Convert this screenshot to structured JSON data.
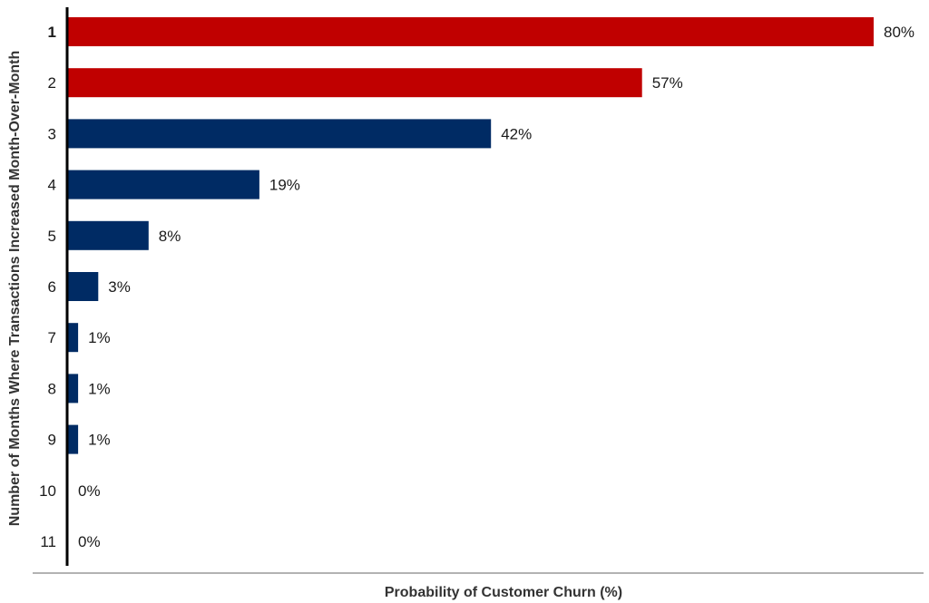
{
  "chart_data": {
    "type": "bar",
    "orientation": "horizontal",
    "categories": [
      "1",
      "2",
      "3",
      "4",
      "5",
      "6",
      "7",
      "8",
      "9",
      "10",
      "11"
    ],
    "values": [
      80,
      57,
      42,
      19,
      8,
      3,
      1,
      1,
      1,
      0,
      0
    ],
    "data_labels": [
      "80%",
      "57%",
      "42%",
      "19%",
      "8%",
      "3%",
      "1%",
      "1%",
      "1%",
      "0%",
      "0%"
    ],
    "bar_colors": [
      "#c00000",
      "#c00000",
      "#002b64",
      "#002b64",
      "#002b64",
      "#002b64",
      "#002b64",
      "#002b64",
      "#002b64",
      "#002b64",
      "#002b64"
    ],
    "xlabel": "Probability of Customer Churn (%)",
    "ylabel": "Number of Months Where Transactions Increased Month-Over-Month",
    "xlim": [
      0,
      80
    ],
    "grid": false,
    "legend": "none"
  },
  "colors": {
    "highlight": "#c00000",
    "base": "#002b64",
    "axis": "#000000",
    "baseline": "#666666"
  }
}
